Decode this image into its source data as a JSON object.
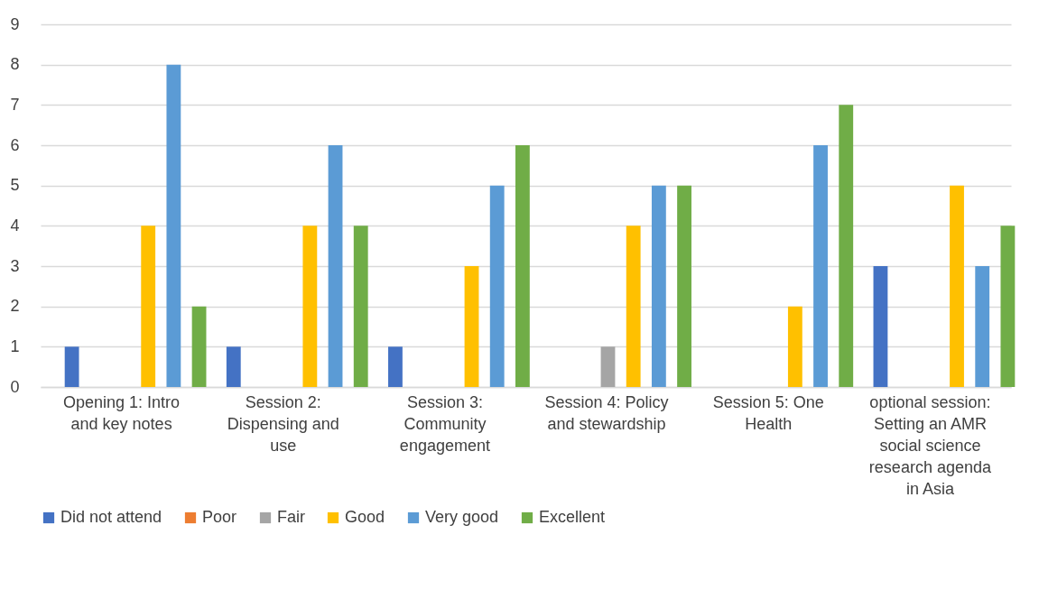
{
  "chart_data": {
    "type": "bar",
    "categories": [
      "Opening 1: Intro and key notes",
      "Session 2: Dispensing and use",
      "Session 3: Community engagement",
      "Session 4: Policy and stewardship",
      "Session 5: One Health",
      "optional session: Setting an AMR social science research agenda in Asia"
    ],
    "series": [
      {
        "name": "Did not attend",
        "color": "#4472c4",
        "values": [
          1,
          1,
          1,
          0,
          0,
          3
        ]
      },
      {
        "name": "Poor",
        "color": "#ed7d31",
        "values": [
          0,
          0,
          0,
          0,
          0,
          0
        ]
      },
      {
        "name": "Fair",
        "color": "#a5a5a5",
        "values": [
          0,
          0,
          0,
          1,
          0,
          0
        ]
      },
      {
        "name": "Good",
        "color": "#ffc000",
        "values": [
          4,
          4,
          3,
          4,
          2,
          5
        ]
      },
      {
        "name": "Very good",
        "color": "#5b9bd5",
        "values": [
          8,
          6,
          5,
          5,
          6,
          3
        ]
      },
      {
        "name": "Excellent",
        "color": "#70ad47",
        "values": [
          2,
          4,
          6,
          5,
          7,
          4
        ]
      }
    ],
    "ylim": [
      0,
      9
    ],
    "yticks": [
      0,
      1,
      2,
      3,
      4,
      5,
      6,
      7,
      8,
      9
    ],
    "grid": "y",
    "legend": "bottom"
  }
}
